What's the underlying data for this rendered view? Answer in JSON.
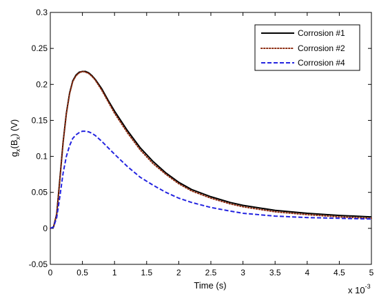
{
  "chart_data": {
    "type": "line",
    "title": "",
    "xlabel": "Time (s)",
    "ylabel": "g_x(B_x) (V)",
    "ylabel_parts": {
      "g": "g",
      "sub1": "x",
      "open": "(B",
      "sub2": "x",
      "close": ") (V)"
    },
    "x_multiplier": "x 10",
    "x_multiplier_exp": "-3",
    "xlim": [
      0,
      5
    ],
    "ylim": [
      -0.05,
      0.3
    ],
    "x_ticks": [
      "0",
      "0.5",
      "1",
      "1.5",
      "2",
      "2.5",
      "3",
      "3.5",
      "4",
      "4.5",
      "5"
    ],
    "y_ticks": [
      "-0.05",
      "0",
      "0.05",
      "0.1",
      "0.15",
      "0.2",
      "0.25",
      "0.3"
    ],
    "grid": false,
    "legend_position": "top-right",
    "series": [
      {
        "name": "Corrosion #1",
        "color": "#000000",
        "style": "solid",
        "x": [
          0,
          0.05,
          0.1,
          0.15,
          0.2,
          0.25,
          0.3,
          0.35,
          0.4,
          0.45,
          0.5,
          0.55,
          0.6,
          0.65,
          0.7,
          0.8,
          0.9,
          1.0,
          1.2,
          1.4,
          1.6,
          1.8,
          2.0,
          2.2,
          2.5,
          2.8,
          3.0,
          3.5,
          4.0,
          4.5,
          5.0
        ],
        "y": [
          0,
          0.002,
          0.02,
          0.07,
          0.12,
          0.16,
          0.188,
          0.205,
          0.213,
          0.217,
          0.218,
          0.218,
          0.216,
          0.212,
          0.207,
          0.194,
          0.178,
          0.163,
          0.136,
          0.112,
          0.093,
          0.077,
          0.064,
          0.054,
          0.044,
          0.036,
          0.032,
          0.025,
          0.021,
          0.018,
          0.016
        ]
      },
      {
        "name": "Corrosion #2",
        "color": "#8B2A0E",
        "style": "dotted",
        "x": [
          0,
          0.05,
          0.1,
          0.15,
          0.2,
          0.25,
          0.3,
          0.35,
          0.4,
          0.45,
          0.5,
          0.55,
          0.6,
          0.65,
          0.7,
          0.8,
          0.9,
          1.0,
          1.2,
          1.4,
          1.6,
          1.8,
          2.0,
          2.2,
          2.5,
          2.8,
          3.0,
          3.5,
          4.0,
          4.5,
          5.0
        ],
        "y": [
          0,
          0.002,
          0.02,
          0.069,
          0.119,
          0.159,
          0.187,
          0.204,
          0.212,
          0.216,
          0.218,
          0.217,
          0.215,
          0.211,
          0.206,
          0.192,
          0.176,
          0.16,
          0.133,
          0.109,
          0.09,
          0.075,
          0.062,
          0.052,
          0.042,
          0.034,
          0.03,
          0.023,
          0.019,
          0.016,
          0.014
        ]
      },
      {
        "name": "Corrosion #4",
        "color": "#2323E0",
        "style": "dashed",
        "x": [
          0,
          0.05,
          0.1,
          0.15,
          0.2,
          0.25,
          0.3,
          0.35,
          0.4,
          0.45,
          0.5,
          0.55,
          0.6,
          0.65,
          0.7,
          0.8,
          0.9,
          1.0,
          1.2,
          1.4,
          1.6,
          1.8,
          2.0,
          2.2,
          2.5,
          2.8,
          3.0,
          3.5,
          4.0,
          4.5,
          5.0
        ],
        "y": [
          0,
          0.002,
          0.015,
          0.045,
          0.077,
          0.1,
          0.115,
          0.125,
          0.13,
          0.133,
          0.135,
          0.135,
          0.134,
          0.132,
          0.129,
          0.121,
          0.112,
          0.103,
          0.086,
          0.071,
          0.06,
          0.05,
          0.042,
          0.036,
          0.029,
          0.024,
          0.021,
          0.017,
          0.015,
          0.014,
          0.013
        ]
      }
    ]
  }
}
